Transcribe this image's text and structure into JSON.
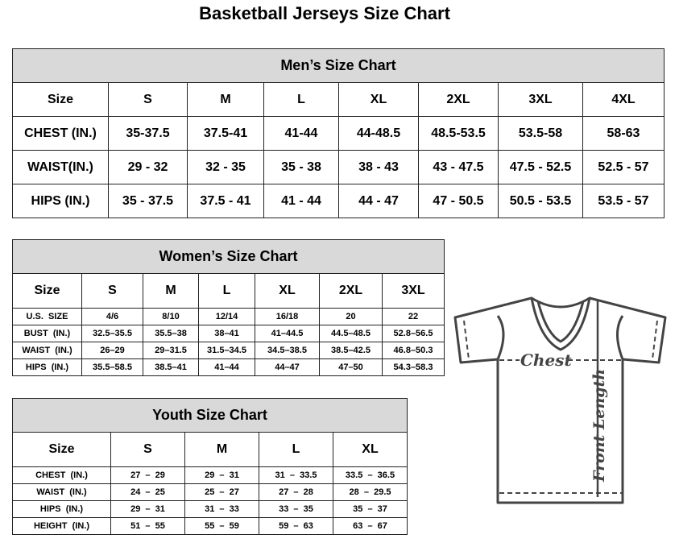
{
  "title": "Basketball Jerseys Size Chart",
  "mens": {
    "heading": "Men’s Size Chart",
    "rows": [
      [
        "Size",
        "S",
        "M",
        "L",
        "XL",
        "2XL",
        "3XL",
        "4XL"
      ],
      [
        "CHEST (IN.)",
        "35-37.5",
        "37.5-41",
        "41-44",
        "44-48.5",
        "48.5-53.5",
        "53.5-58",
        "58-63"
      ],
      [
        "WAIST(IN.)",
        "29 - 32",
        "32 - 35",
        "35 - 38",
        "38 - 43",
        "43 - 47.5",
        "47.5 - 52.5",
        "52.5 - 57"
      ],
      [
        "HIPS (IN.)",
        "35 - 37.5",
        "37.5 - 41",
        "41 - 44",
        "44 - 47",
        "47 - 50.5",
        "50.5 - 53.5",
        "53.5 - 57"
      ]
    ]
  },
  "womens": {
    "heading": "Women’s Size Chart",
    "rows": [
      [
        "Size",
        "S",
        "M",
        "L",
        "XL",
        "2XL",
        "3XL"
      ],
      [
        "U.S.  SIZE",
        "4/6",
        "8/10",
        "12/14",
        "16/18",
        "20",
        "22"
      ],
      [
        "BUST  (IN.)",
        "32.5–35.5",
        "35.5–38",
        "38–41",
        "41–44.5",
        "44.5–48.5",
        "52.8–56.5"
      ],
      [
        "WAIST  (IN.)",
        "26–29",
        "29–31.5",
        "31.5–34.5",
        "34.5–38.5",
        "38.5–42.5",
        "46.8–50.3"
      ],
      [
        "HIPS  (IN.)",
        "35.5–58.5",
        "38.5–41",
        "41–44",
        "44–47",
        "47–50",
        "54.3–58.3"
      ]
    ]
  },
  "youth": {
    "heading": "Youth Size Chart",
    "rows": [
      [
        "Size",
        "S",
        "M",
        "L",
        "XL"
      ],
      [
        "CHEST  (IN.)",
        "27  –  29",
        "29  –  31",
        "31  –  33.5",
        "33.5  –  36.5"
      ],
      [
        "WAIST  (IN.)",
        "24  –  25",
        "25  –  27",
        "27  –  28",
        "28  –  29.5"
      ],
      [
        "HIPS  (IN.)",
        "29  –  31",
        "31  –  33",
        "33  –  35",
        "35  –  37"
      ],
      [
        "HEIGHT  (IN.)",
        "51  –  55",
        "55  –  59",
        "59  –  63",
        "63  –  67"
      ]
    ]
  },
  "diagram": {
    "chest_label": "Chest",
    "length_label": "Front Length"
  }
}
